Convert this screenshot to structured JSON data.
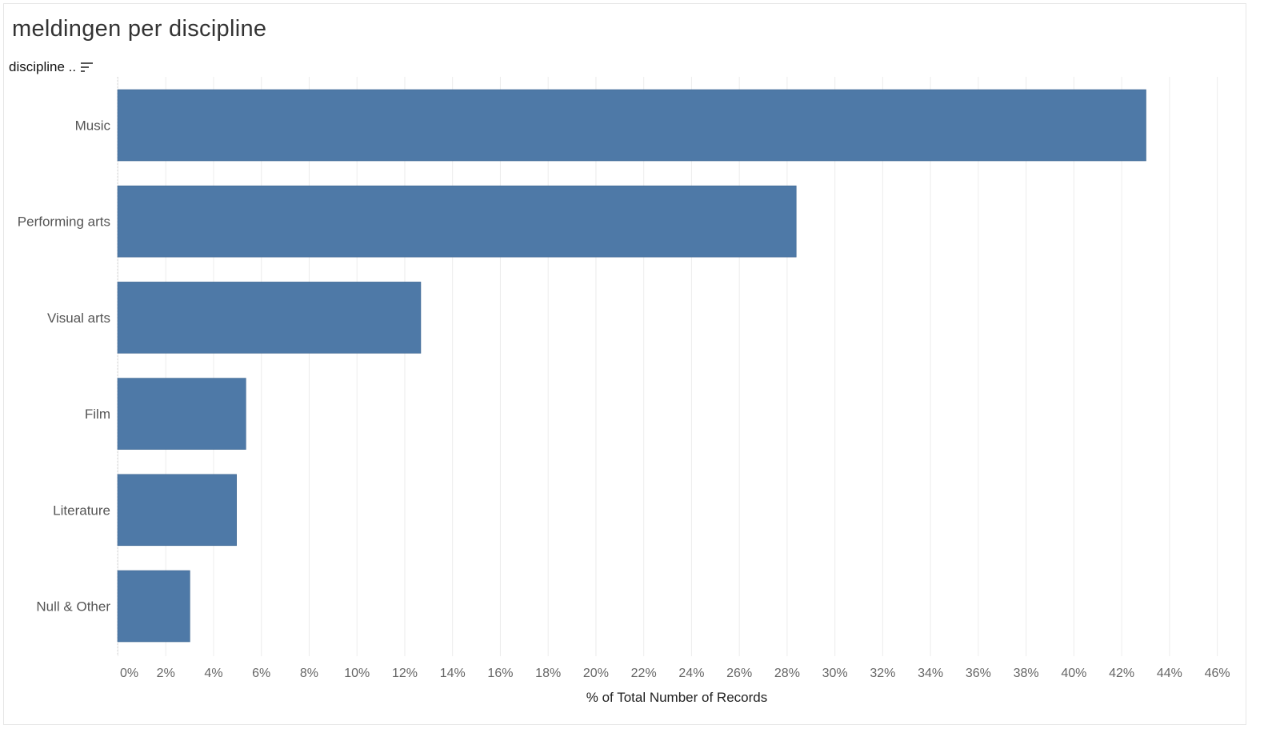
{
  "title": "meldingen per discipline",
  "field_header": {
    "label": "discipline ..",
    "sort_icon": "sort-descending-icon"
  },
  "colors": {
    "bar": "#4e79a7",
    "grid": "#ececec",
    "tick_text": "#666666",
    "label_text": "#555555"
  },
  "chart_data": {
    "type": "bar",
    "orientation": "horizontal",
    "categories": [
      "Music",
      "Performing arts",
      "Visual arts",
      "Film",
      "Literature",
      "Null & Other"
    ],
    "values": [
      44.1,
      29.1,
      13.0,
      5.5,
      5.1,
      3.1
    ],
    "xlabel": "% of Total Number of Records",
    "ylabel": "",
    "xlim": [
      0,
      46
    ],
    "xticks": [
      "0%",
      "2%",
      "4%",
      "6%",
      "8%",
      "10%",
      "12%",
      "14%",
      "16%",
      "18%",
      "20%",
      "22%",
      "24%",
      "26%",
      "28%",
      "30%",
      "32%",
      "34%",
      "36%",
      "38%",
      "40%",
      "42%",
      "44%",
      "46%"
    ],
    "grid": true
  }
}
